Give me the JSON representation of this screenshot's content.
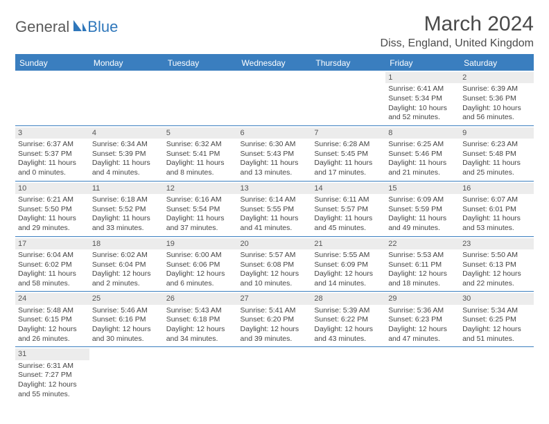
{
  "logo": {
    "general": "General",
    "blue": "Blue"
  },
  "title": "March 2024",
  "location": "Diss, England, United Kingdom",
  "colors": {
    "header_bg": "#3a7ebf",
    "header_text": "#ffffff",
    "daynum_bg": "#ececec",
    "text": "#444444",
    "accent": "#2f77bb"
  },
  "weekdays": [
    "Sunday",
    "Monday",
    "Tuesday",
    "Wednesday",
    "Thursday",
    "Friday",
    "Saturday"
  ],
  "first_weekday_index": 5,
  "days": [
    {
      "n": 1,
      "sunrise": "6:41 AM",
      "sunset": "5:34 PM",
      "daylight": "10 hours and 52 minutes."
    },
    {
      "n": 2,
      "sunrise": "6:39 AM",
      "sunset": "5:36 PM",
      "daylight": "10 hours and 56 minutes."
    },
    {
      "n": 3,
      "sunrise": "6:37 AM",
      "sunset": "5:37 PM",
      "daylight": "11 hours and 0 minutes."
    },
    {
      "n": 4,
      "sunrise": "6:34 AM",
      "sunset": "5:39 PM",
      "daylight": "11 hours and 4 minutes."
    },
    {
      "n": 5,
      "sunrise": "6:32 AM",
      "sunset": "5:41 PM",
      "daylight": "11 hours and 8 minutes."
    },
    {
      "n": 6,
      "sunrise": "6:30 AM",
      "sunset": "5:43 PM",
      "daylight": "11 hours and 13 minutes."
    },
    {
      "n": 7,
      "sunrise": "6:28 AM",
      "sunset": "5:45 PM",
      "daylight": "11 hours and 17 minutes."
    },
    {
      "n": 8,
      "sunrise": "6:25 AM",
      "sunset": "5:46 PM",
      "daylight": "11 hours and 21 minutes."
    },
    {
      "n": 9,
      "sunrise": "6:23 AM",
      "sunset": "5:48 PM",
      "daylight": "11 hours and 25 minutes."
    },
    {
      "n": 10,
      "sunrise": "6:21 AM",
      "sunset": "5:50 PM",
      "daylight": "11 hours and 29 minutes."
    },
    {
      "n": 11,
      "sunrise": "6:18 AM",
      "sunset": "5:52 PM",
      "daylight": "11 hours and 33 minutes."
    },
    {
      "n": 12,
      "sunrise": "6:16 AM",
      "sunset": "5:54 PM",
      "daylight": "11 hours and 37 minutes."
    },
    {
      "n": 13,
      "sunrise": "6:14 AM",
      "sunset": "5:55 PM",
      "daylight": "11 hours and 41 minutes."
    },
    {
      "n": 14,
      "sunrise": "6:11 AM",
      "sunset": "5:57 PM",
      "daylight": "11 hours and 45 minutes."
    },
    {
      "n": 15,
      "sunrise": "6:09 AM",
      "sunset": "5:59 PM",
      "daylight": "11 hours and 49 minutes."
    },
    {
      "n": 16,
      "sunrise": "6:07 AM",
      "sunset": "6:01 PM",
      "daylight": "11 hours and 53 minutes."
    },
    {
      "n": 17,
      "sunrise": "6:04 AM",
      "sunset": "6:02 PM",
      "daylight": "11 hours and 58 minutes."
    },
    {
      "n": 18,
      "sunrise": "6:02 AM",
      "sunset": "6:04 PM",
      "daylight": "12 hours and 2 minutes."
    },
    {
      "n": 19,
      "sunrise": "6:00 AM",
      "sunset": "6:06 PM",
      "daylight": "12 hours and 6 minutes."
    },
    {
      "n": 20,
      "sunrise": "5:57 AM",
      "sunset": "6:08 PM",
      "daylight": "12 hours and 10 minutes."
    },
    {
      "n": 21,
      "sunrise": "5:55 AM",
      "sunset": "6:09 PM",
      "daylight": "12 hours and 14 minutes."
    },
    {
      "n": 22,
      "sunrise": "5:53 AM",
      "sunset": "6:11 PM",
      "daylight": "12 hours and 18 minutes."
    },
    {
      "n": 23,
      "sunrise": "5:50 AM",
      "sunset": "6:13 PM",
      "daylight": "12 hours and 22 minutes."
    },
    {
      "n": 24,
      "sunrise": "5:48 AM",
      "sunset": "6:15 PM",
      "daylight": "12 hours and 26 minutes."
    },
    {
      "n": 25,
      "sunrise": "5:46 AM",
      "sunset": "6:16 PM",
      "daylight": "12 hours and 30 minutes."
    },
    {
      "n": 26,
      "sunrise": "5:43 AM",
      "sunset": "6:18 PM",
      "daylight": "12 hours and 34 minutes."
    },
    {
      "n": 27,
      "sunrise": "5:41 AM",
      "sunset": "6:20 PM",
      "daylight": "12 hours and 39 minutes."
    },
    {
      "n": 28,
      "sunrise": "5:39 AM",
      "sunset": "6:22 PM",
      "daylight": "12 hours and 43 minutes."
    },
    {
      "n": 29,
      "sunrise": "5:36 AM",
      "sunset": "6:23 PM",
      "daylight": "12 hours and 47 minutes."
    },
    {
      "n": 30,
      "sunrise": "5:34 AM",
      "sunset": "6:25 PM",
      "daylight": "12 hours and 51 minutes."
    },
    {
      "n": 31,
      "sunrise": "6:31 AM",
      "sunset": "7:27 PM",
      "daylight": "12 hours and 55 minutes."
    }
  ],
  "labels": {
    "sunrise": "Sunrise:",
    "sunset": "Sunset:",
    "daylight": "Daylight:"
  }
}
